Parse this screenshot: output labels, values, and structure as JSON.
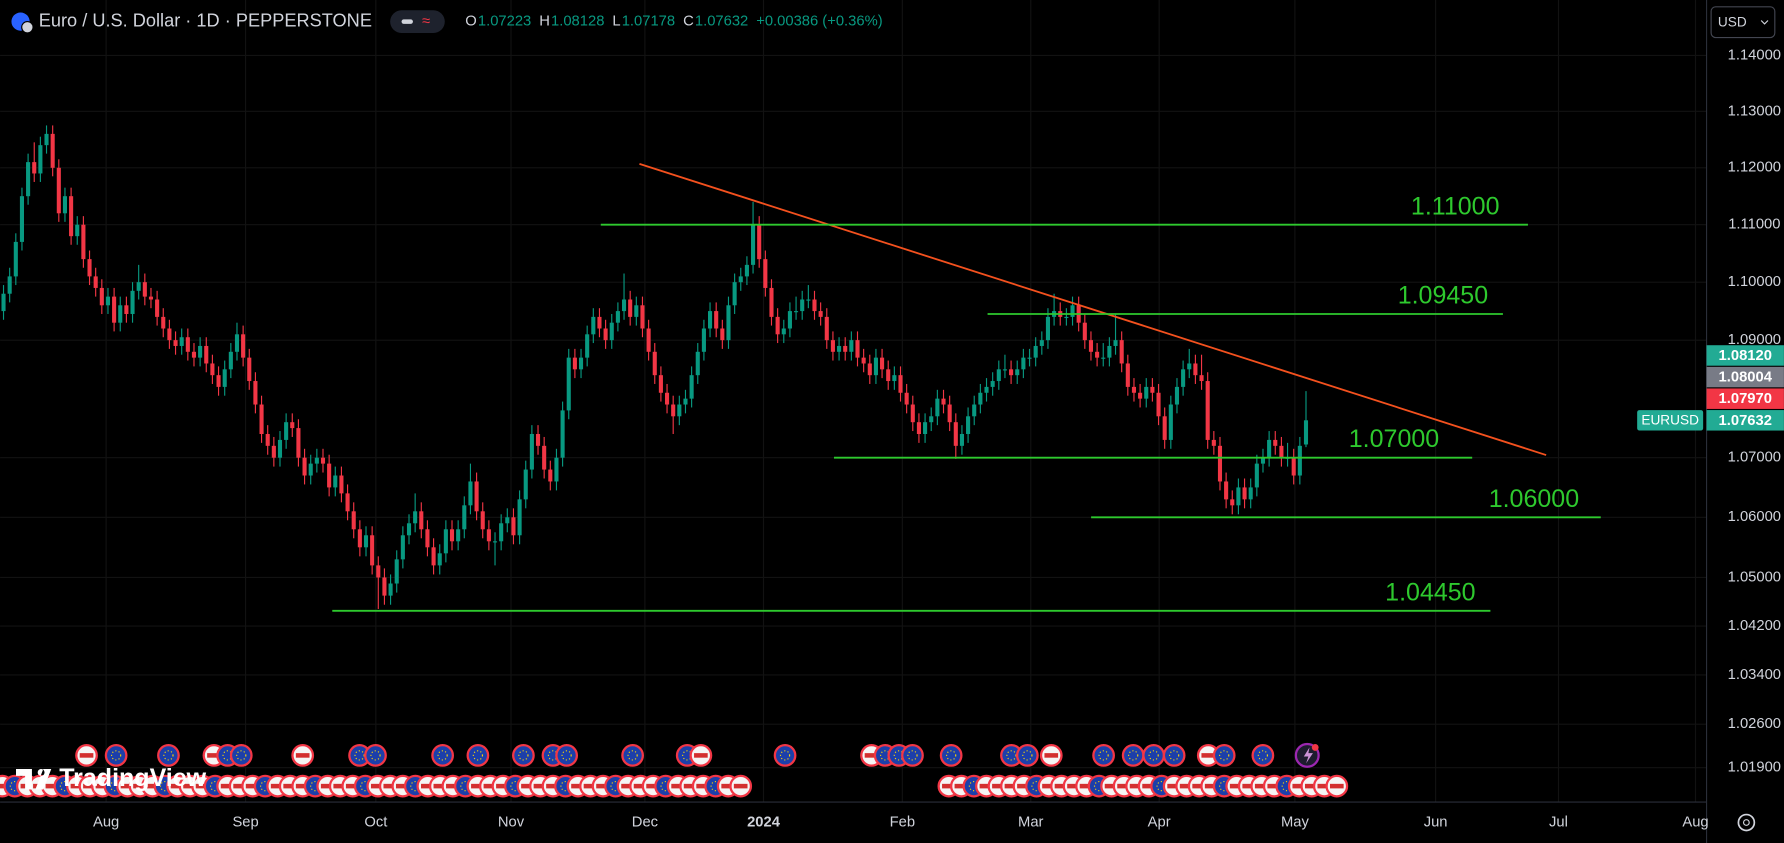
{
  "header": {
    "symbol": "Euro / U.S. Dollar · 1D · PEPPERSTONE",
    "open_label": "O",
    "open": 1.07223,
    "high_label": "H",
    "high": 1.08128,
    "low_label": "L",
    "low": 1.07178,
    "close_label": "C",
    "close": 1.07632,
    "change": "+0.00386 (+0.36%)"
  },
  "currency": "USD",
  "brand": "TradingView",
  "chart_data": {
    "type": "candlestick",
    "up_color": "#089981",
    "down_color": "#f23645",
    "log_scale": true,
    "grid": true,
    "ylim": [
      1.0135,
      1.15
    ],
    "xlim": [
      -0.56,
      277.2
    ],
    "yticks": [
      {
        "value": 1.14,
        "label": "1.14000"
      },
      {
        "value": 1.13,
        "label": "1.13000"
      },
      {
        "value": 1.12,
        "label": "1.12000"
      },
      {
        "value": 1.11,
        "label": "1.11000"
      },
      {
        "value": 1.1,
        "label": "1.10000"
      },
      {
        "value": 1.09,
        "label": "1.09000"
      },
      {
        "value": 1.07,
        "label": "1.07000"
      },
      {
        "value": 1.06,
        "label": "1.06000"
      },
      {
        "value": 1.05,
        "label": "1.05000"
      },
      {
        "value": 1.042,
        "label": "1.04200"
      },
      {
        "value": 1.034,
        "label": "1.03400"
      },
      {
        "value": 1.026,
        "label": "1.02600"
      },
      {
        "value": 1.019,
        "label": "1.01900"
      }
    ],
    "xticks": [
      {
        "value": 16.7,
        "label": "Aug"
      },
      {
        "value": 39.4,
        "label": "Sep"
      },
      {
        "value": 60.6,
        "label": "Oct"
      },
      {
        "value": 82.6,
        "label": "Nov"
      },
      {
        "value": 104.4,
        "label": "Dec"
      },
      {
        "value": 123.7,
        "label": "2024"
      },
      {
        "value": 146.3,
        "label": "Feb"
      },
      {
        "value": 167.2,
        "label": "Mar"
      },
      {
        "value": 188.1,
        "label": "Apr"
      },
      {
        "value": 210.2,
        "label": "May"
      },
      {
        "value": 233.1,
        "label": "Jun"
      },
      {
        "value": 253.1,
        "label": "Jul"
      },
      {
        "value": 275.4,
        "label": "Aug"
      }
    ],
    "levels": [
      {
        "value": 1.11,
        "label": "1.11000"
      },
      {
        "value": 1.0945,
        "label": "1.09450"
      },
      {
        "value": 1.07,
        "label": "1.07000"
      },
      {
        "value": 1.06,
        "label": "1.06000"
      },
      {
        "value": 1.0445,
        "label": "1.04450"
      }
    ],
    "level_color": "#2ec92e",
    "trendline_color": "#f4511e",
    "symbol_tag": "EURUSD",
    "price_labels": [
      {
        "value": 1.0812,
        "label": "1.08120",
        "color": "#22ab94"
      },
      {
        "value": 1.08004,
        "label": "1.08004",
        "color": "#787b86"
      },
      {
        "value": 1.0797,
        "label": "1.07970",
        "color": "#f23645"
      },
      {
        "value": 1.07632,
        "label": "1.07632",
        "color": "#22ab94"
      }
    ],
    "candles": [
      [
        1.095,
        1.0995,
        1.0935,
        1.098
      ],
      [
        1.098,
        1.1025,
        1.0965,
        1.101
      ],
      [
        1.101,
        1.1085,
        1.0995,
        1.107
      ],
      [
        1.107,
        1.1165,
        1.1055,
        1.115
      ],
      [
        1.115,
        1.1225,
        1.1135,
        1.121
      ],
      [
        1.121,
        1.1245,
        1.1175,
        1.119
      ],
      [
        1.119,
        1.1255,
        1.1175,
        1.124
      ],
      [
        1.124,
        1.1275,
        1.1225,
        1.126
      ],
      [
        1.126,
        1.1275,
        1.1185,
        1.12
      ],
      [
        1.12,
        1.1215,
        1.1105,
        1.112
      ],
      [
        1.112,
        1.1165,
        1.1105,
        1.115
      ],
      [
        1.115,
        1.1165,
        1.1065,
        1.108
      ],
      [
        1.108,
        1.1115,
        1.1065,
        1.11
      ],
      [
        1.11,
        1.1115,
        1.1025,
        1.104
      ],
      [
        1.104,
        1.1055,
        1.0995,
        1.101
      ],
      [
        1.101,
        1.1025,
        1.0975,
        1.099
      ],
      [
        1.099,
        1.1005,
        1.0945,
        1.096
      ],
      [
        1.096,
        1.099,
        1.0945,
        1.0975
      ],
      [
        1.0975,
        1.099,
        1.0915,
        1.093
      ],
      [
        1.093,
        1.0975,
        1.0915,
        1.096
      ],
      [
        1.096,
        1.0975,
        1.093,
        1.0945
      ],
      [
        1.0945,
        1.1,
        1.093,
        1.0985
      ],
      [
        1.0985,
        1.103,
        1.097,
        1.1
      ],
      [
        1.1,
        1.1015,
        1.096,
        1.0975
      ],
      [
        1.0975,
        1.099,
        1.0955,
        1.097
      ],
      [
        1.097,
        1.0985,
        1.0925,
        1.094
      ],
      [
        1.094,
        1.0955,
        1.0905,
        1.092
      ],
      [
        1.092,
        1.0935,
        1.0885,
        1.09
      ],
      [
        1.09,
        1.0915,
        1.0875,
        1.089
      ],
      [
        1.089,
        1.092,
        1.0875,
        1.0905
      ],
      [
        1.0905,
        1.092,
        1.0865,
        1.088
      ],
      [
        1.088,
        1.0895,
        1.0855,
        1.087
      ],
      [
        1.087,
        1.0905,
        1.0855,
        1.089
      ],
      [
        1.089,
        1.0905,
        1.0845,
        1.086
      ],
      [
        1.086,
        1.0875,
        1.0825,
        1.084
      ],
      [
        1.084,
        1.0855,
        1.0805,
        1.082
      ],
      [
        1.082,
        1.0865,
        1.0805,
        1.085
      ],
      [
        1.085,
        1.0895,
        1.0835,
        1.088
      ],
      [
        1.088,
        1.093,
        1.0865,
        1.091
      ],
      [
        1.091,
        1.0925,
        1.0855,
        1.087
      ],
      [
        1.087,
        1.0885,
        1.0815,
        1.083
      ],
      [
        1.083,
        1.0845,
        1.0775,
        1.079
      ],
      [
        1.079,
        1.0805,
        1.0725,
        1.074
      ],
      [
        1.074,
        1.0755,
        1.0705,
        1.072
      ],
      [
        1.072,
        1.0735,
        1.0685,
        1.07
      ],
      [
        1.07,
        1.0745,
        1.0685,
        1.073
      ],
      [
        1.073,
        1.0775,
        1.0715,
        1.076
      ],
      [
        1.076,
        1.0775,
        1.0735,
        1.075
      ],
      [
        1.075,
        1.0765,
        1.0685,
        1.07
      ],
      [
        1.07,
        1.0715,
        1.0655,
        1.067
      ],
      [
        1.067,
        1.0705,
        1.0655,
        1.069
      ],
      [
        1.069,
        1.0715,
        1.0675,
        1.07
      ],
      [
        1.07,
        1.0715,
        1.0675,
        1.069
      ],
      [
        1.069,
        1.0705,
        1.0635,
        1.065
      ],
      [
        1.065,
        1.0685,
        1.0635,
        1.067
      ],
      [
        1.067,
        1.0685,
        1.0625,
        1.064
      ],
      [
        1.064,
        1.0655,
        1.0595,
        1.061
      ],
      [
        1.061,
        1.0625,
        1.0565,
        1.058
      ],
      [
        1.058,
        1.0595,
        1.0535,
        1.055
      ],
      [
        1.055,
        1.0585,
        1.0535,
        1.057
      ],
      [
        1.057,
        1.0585,
        1.0505,
        1.052
      ],
      [
        1.052,
        1.0535,
        1.0448,
        1.05
      ],
      [
        1.05,
        1.0515,
        1.0455,
        1.047
      ],
      [
        1.047,
        1.0505,
        1.0455,
        1.049
      ],
      [
        1.049,
        1.0545,
        1.0475,
        1.053
      ],
      [
        1.053,
        1.0585,
        1.0515,
        1.057
      ],
      [
        1.057,
        1.0605,
        1.0555,
        1.059
      ],
      [
        1.059,
        1.064,
        1.0575,
        1.061
      ],
      [
        1.061,
        1.0625,
        1.0565,
        1.058
      ],
      [
        1.058,
        1.0595,
        1.0535,
        1.055
      ],
      [
        1.055,
        1.0565,
        1.0505,
        1.052
      ],
      [
        1.052,
        1.0555,
        1.0505,
        1.054
      ],
      [
        1.054,
        1.0595,
        1.0525,
        1.058
      ],
      [
        1.058,
        1.0595,
        1.0545,
        1.056
      ],
      [
        1.056,
        1.0595,
        1.0545,
        1.058
      ],
      [
        1.058,
        1.0635,
        1.0565,
        1.062
      ],
      [
        1.062,
        1.069,
        1.0605,
        1.066
      ],
      [
        1.066,
        1.0675,
        1.0595,
        1.061
      ],
      [
        1.061,
        1.0625,
        1.0565,
        1.058
      ],
      [
        1.058,
        1.0595,
        1.0545,
        1.056
      ],
      [
        1.056,
        1.0575,
        1.052,
        1.056
      ],
      [
        1.056,
        1.0605,
        1.0545,
        1.059
      ],
      [
        1.059,
        1.0615,
        1.0575,
        1.06
      ],
      [
        1.06,
        1.0615,
        1.0555,
        1.057
      ],
      [
        1.057,
        1.0645,
        1.0555,
        1.063
      ],
      [
        1.063,
        1.0695,
        1.0615,
        1.068
      ],
      [
        1.068,
        1.0755,
        1.0665,
        1.074
      ],
      [
        1.074,
        1.0755,
        1.0705,
        1.072
      ],
      [
        1.072,
        1.0735,
        1.0665,
        1.068
      ],
      [
        1.068,
        1.0695,
        1.0645,
        1.066
      ],
      [
        1.066,
        1.0715,
        1.0645,
        1.07
      ],
      [
        1.07,
        1.0795,
        1.0685,
        1.078
      ],
      [
        1.078,
        1.0885,
        1.0765,
        1.087
      ],
      [
        1.087,
        1.0885,
        1.0835,
        1.085
      ],
      [
        1.085,
        1.0885,
        1.0835,
        1.087
      ],
      [
        1.087,
        1.0925,
        1.0855,
        1.091
      ],
      [
        1.091,
        1.0955,
        1.0895,
        1.094
      ],
      [
        1.094,
        1.0955,
        1.0905,
        1.092
      ],
      [
        1.092,
        1.0935,
        1.0885,
        1.09
      ],
      [
        1.09,
        1.0945,
        1.0885,
        1.093
      ],
      [
        1.093,
        1.0965,
        1.0915,
        1.095
      ],
      [
        1.095,
        1.1015,
        1.0935,
        1.097
      ],
      [
        1.097,
        1.0985,
        1.0925,
        1.094
      ],
      [
        1.094,
        1.0975,
        1.0925,
        1.096
      ],
      [
        1.096,
        1.0975,
        1.0905,
        1.092
      ],
      [
        1.092,
        1.0935,
        1.0865,
        1.088
      ],
      [
        1.088,
        1.0895,
        1.0825,
        1.084
      ],
      [
        1.084,
        1.0855,
        1.0795,
        1.081
      ],
      [
        1.081,
        1.0825,
        1.0775,
        1.079
      ],
      [
        1.079,
        1.0805,
        1.074,
        1.077
      ],
      [
        1.077,
        1.0805,
        1.0755,
        1.079
      ],
      [
        1.079,
        1.0815,
        1.0775,
        1.08
      ],
      [
        1.08,
        1.0855,
        1.0785,
        1.084
      ],
      [
        1.084,
        1.0895,
        1.0825,
        1.088
      ],
      [
        1.088,
        1.0935,
        1.0865,
        1.092
      ],
      [
        1.092,
        1.0965,
        1.0905,
        1.095
      ],
      [
        1.095,
        1.0965,
        1.0905,
        1.092
      ],
      [
        1.092,
        1.0935,
        1.0885,
        1.09
      ],
      [
        1.09,
        1.0975,
        1.0885,
        1.096
      ],
      [
        1.096,
        1.1015,
        1.0945,
        1.1
      ],
      [
        1.1,
        1.1025,
        1.0985,
        1.101
      ],
      [
        1.101,
        1.1045,
        1.0995,
        1.103
      ],
      [
        1.103,
        1.114,
        1.1015,
        1.11
      ],
      [
        1.11,
        1.1115,
        1.1025,
        1.104
      ],
      [
        1.104,
        1.1055,
        1.0975,
        1.099
      ],
      [
        1.099,
        1.1005,
        1.0925,
        1.094
      ],
      [
        1.094,
        1.0955,
        1.0895,
        1.091
      ],
      [
        1.091,
        1.0935,
        1.0895,
        1.092
      ],
      [
        1.092,
        1.0965,
        1.0905,
        1.095
      ],
      [
        1.095,
        1.0975,
        1.0935,
        1.095
      ],
      [
        1.095,
        1.0985,
        1.0935,
        1.097
      ],
      [
        1.097,
        1.0995,
        1.0955,
        1.097
      ],
      [
        1.097,
        1.0985,
        1.0935,
        1.095
      ],
      [
        1.095,
        1.0965,
        1.0925,
        1.094
      ],
      [
        1.094,
        1.0955,
        1.0885,
        1.09
      ],
      [
        1.09,
        1.0915,
        1.0865,
        1.088
      ],
      [
        1.088,
        1.0905,
        1.0865,
        1.089
      ],
      [
        1.089,
        1.0905,
        1.0865,
        1.088
      ],
      [
        1.088,
        1.0915,
        1.0865,
        1.09
      ],
      [
        1.09,
        1.0915,
        1.0855,
        1.087
      ],
      [
        1.087,
        1.0885,
        1.0845,
        1.086
      ],
      [
        1.086,
        1.0875,
        1.0825,
        1.084
      ],
      [
        1.084,
        1.0885,
        1.0825,
        1.087
      ],
      [
        1.087,
        1.0885,
        1.0835,
        1.085
      ],
      [
        1.085,
        1.0865,
        1.0815,
        1.083
      ],
      [
        1.083,
        1.0855,
        1.0815,
        1.084
      ],
      [
        1.084,
        1.0855,
        1.0795,
        1.081
      ],
      [
        1.081,
        1.0825,
        1.0775,
        1.079
      ],
      [
        1.079,
        1.0805,
        1.0745,
        1.076
      ],
      [
        1.076,
        1.0775,
        1.0725,
        1.074
      ],
      [
        1.074,
        1.0775,
        1.0725,
        1.076
      ],
      [
        1.076,
        1.0785,
        1.0745,
        1.077
      ],
      [
        1.077,
        1.0815,
        1.0755,
        1.08
      ],
      [
        1.08,
        1.0815,
        1.0775,
        1.079
      ],
      [
        1.079,
        1.0805,
        1.0745,
        1.076
      ],
      [
        1.076,
        1.0775,
        1.0698,
        1.072
      ],
      [
        1.072,
        1.0755,
        1.0705,
        1.074
      ],
      [
        1.074,
        1.0785,
        1.0725,
        1.077
      ],
      [
        1.077,
        1.0805,
        1.0755,
        1.079
      ],
      [
        1.079,
        1.0825,
        1.0775,
        1.081
      ],
      [
        1.081,
        1.0835,
        1.0795,
        1.082
      ],
      [
        1.082,
        1.0845,
        1.0805,
        1.083
      ],
      [
        1.083,
        1.0865,
        1.0815,
        1.085
      ],
      [
        1.085,
        1.0875,
        1.0835,
        1.085
      ],
      [
        1.085,
        1.0865,
        1.0825,
        1.084
      ],
      [
        1.084,
        1.0865,
        1.0825,
        1.085
      ],
      [
        1.085,
        1.0885,
        1.0835,
        1.087
      ],
      [
        1.087,
        1.0885,
        1.0855,
        1.087
      ],
      [
        1.087,
        1.0905,
        1.0855,
        1.089
      ],
      [
        1.089,
        1.0915,
        1.0875,
        1.09
      ],
      [
        1.09,
        1.0955,
        1.0885,
        1.094
      ],
      [
        1.094,
        1.098,
        1.0925,
        1.095
      ],
      [
        1.095,
        1.0965,
        1.0925,
        1.094
      ],
      [
        1.094,
        1.0955,
        1.0925,
        1.094
      ],
      [
        1.094,
        1.0975,
        1.0925,
        1.096
      ],
      [
        1.096,
        1.0975,
        1.0915,
        1.093
      ],
      [
        1.093,
        1.0945,
        1.0885,
        1.09
      ],
      [
        1.09,
        1.0915,
        1.0865,
        1.088
      ],
      [
        1.088,
        1.0895,
        1.0855,
        1.087
      ],
      [
        1.087,
        1.0895,
        1.0855,
        1.087
      ],
      [
        1.087,
        1.0905,
        1.0855,
        1.089
      ],
      [
        1.089,
        1.0945,
        1.0875,
        1.09
      ],
      [
        1.09,
        1.0915,
        1.0845,
        1.086
      ],
      [
        1.086,
        1.0875,
        1.0805,
        1.082
      ],
      [
        1.082,
        1.0835,
        1.0795,
        1.081
      ],
      [
        1.081,
        1.0825,
        1.0785,
        1.08
      ],
      [
        1.08,
        1.0835,
        1.0785,
        1.082
      ],
      [
        1.082,
        1.0835,
        1.0795,
        1.081
      ],
      [
        1.081,
        1.0825,
        1.0755,
        1.077
      ],
      [
        1.077,
        1.0785,
        1.0715,
        1.073
      ],
      [
        1.073,
        1.0805,
        1.0715,
        1.079
      ],
      [
        1.079,
        1.0835,
        1.0775,
        1.082
      ],
      [
        1.082,
        1.0865,
        1.0805,
        1.085
      ],
      [
        1.085,
        1.0885,
        1.0835,
        1.086
      ],
      [
        1.086,
        1.0875,
        1.0825,
        1.084
      ],
      [
        1.084,
        1.0875,
        1.0815,
        1.083
      ],
      [
        1.083,
        1.0845,
        1.0715,
        1.073
      ],
      [
        1.073,
        1.0745,
        1.0705,
        1.072
      ],
      [
        1.072,
        1.0735,
        1.0645,
        1.066
      ],
      [
        1.066,
        1.0675,
        1.0615,
        1.063
      ],
      [
        1.063,
        1.0645,
        1.0605,
        1.062
      ],
      [
        1.062,
        1.0665,
        1.0605,
        1.065
      ],
      [
        1.065,
        1.0665,
        1.0615,
        1.063
      ],
      [
        1.063,
        1.0665,
        1.0615,
        1.065
      ],
      [
        1.065,
        1.0705,
        1.0635,
        1.069
      ],
      [
        1.069,
        1.0715,
        1.0675,
        1.07
      ],
      [
        1.07,
        1.0745,
        1.0685,
        1.073
      ],
      [
        1.073,
        1.0745,
        1.0705,
        1.072
      ],
      [
        1.072,
        1.0735,
        1.0685,
        1.07
      ],
      [
        1.07,
        1.0725,
        1.0685,
        1.07
      ],
      [
        1.07,
        1.0715,
        1.0655,
        1.067
      ],
      [
        1.067,
        1.0735,
        1.0655,
        1.072
      ],
      [
        1.07223,
        1.08128,
        1.07178,
        1.07632
      ]
    ]
  }
}
